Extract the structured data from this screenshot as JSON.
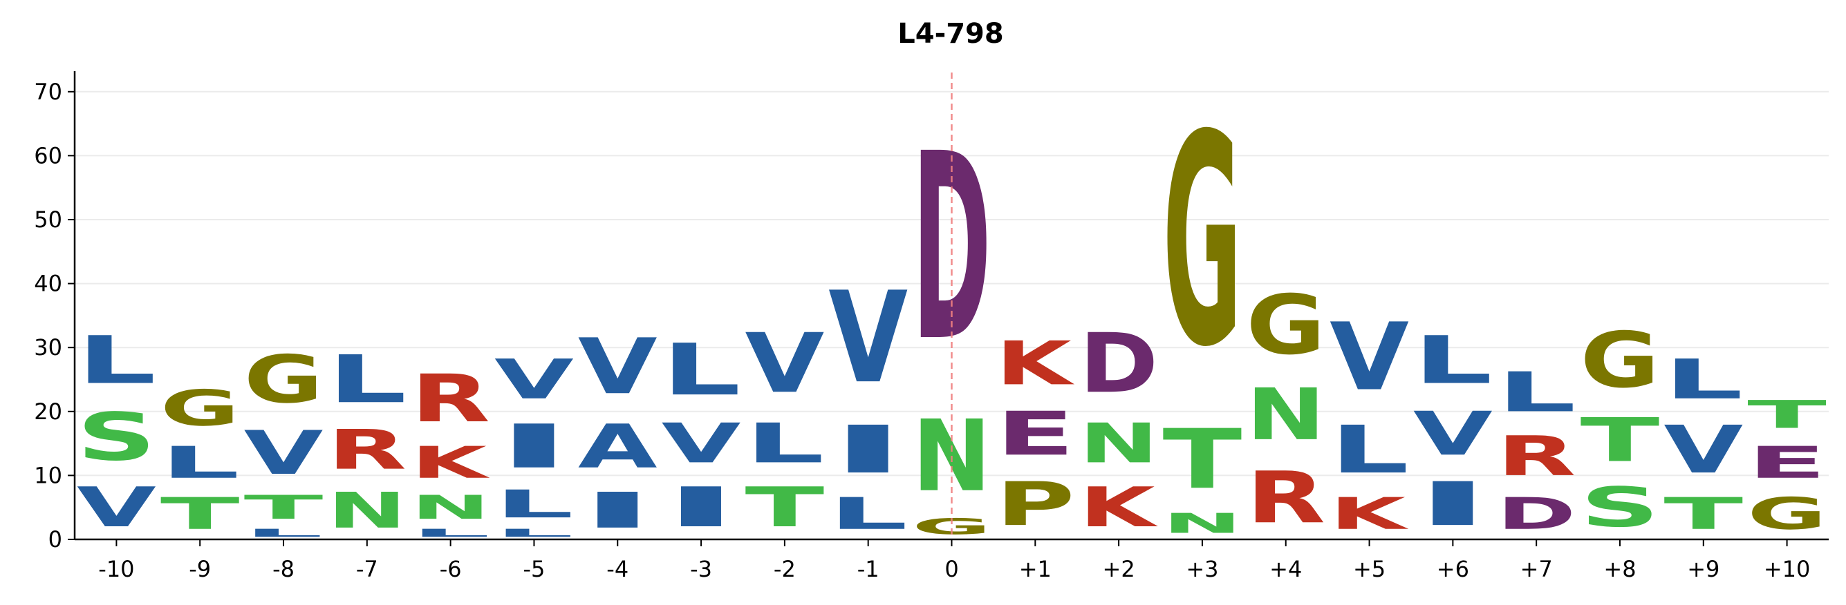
{
  "chart_data": {
    "type": "logo",
    "title": "L4-798",
    "xlabel": "",
    "ylabel": "",
    "ylim": [
      0,
      73
    ],
    "yticks": [
      0,
      10,
      20,
      30,
      40,
      50,
      60,
      70
    ],
    "grid": "horizontal",
    "positions": [
      "-10",
      "-9",
      "-8",
      "-7",
      "-6",
      "-5",
      "-4",
      "-3",
      "-2",
      "-1",
      "0",
      "+1",
      "+2",
      "+3",
      "+4",
      "+5",
      "+6",
      "+7",
      "+8",
      "+9",
      "+10"
    ],
    "reference_line": {
      "position": "0",
      "style": "dashed",
      "color": "#f08080"
    },
    "colors": {
      "L": "#245d9f",
      "V": "#245d9f",
      "I": "#245d9f",
      "A": "#245d9f",
      "T": "#41b947",
      "S": "#41b947",
      "N": "#41b947",
      "G": "#7b7600",
      "P": "#7b7600",
      "R": "#c1311f",
      "K": "#c1311f",
      "D": "#6b2a6d",
      "E": "#6b2a6d"
    },
    "stacks": [
      [
        {
          "letter": "V",
          "height": 10
        },
        {
          "letter": "S",
          "height": 12
        },
        {
          "letter": "L",
          "height": 12
        }
      ],
      [
        {
          "letter": "T",
          "height": 8
        },
        {
          "letter": "L",
          "height": 8
        },
        {
          "letter": "G",
          "height": 9
        }
      ],
      [
        {
          "letter": "L",
          "height": 2
        },
        {
          "letter": "T",
          "height": 6
        },
        {
          "letter": "V",
          "height": 11
        },
        {
          "letter": "G",
          "height": 12
        }
      ],
      [
        {
          "letter": "N",
          "height": 9
        },
        {
          "letter": "R",
          "height": 10
        },
        {
          "letter": "L",
          "height": 12
        }
      ],
      [
        {
          "letter": "L",
          "height": 2
        },
        {
          "letter": "N",
          "height": 6
        },
        {
          "letter": "K",
          "height": 8
        },
        {
          "letter": "R",
          "height": 12
        }
      ],
      [
        {
          "letter": "L",
          "height": 2
        },
        {
          "letter": "L",
          "height": 7
        },
        {
          "letter": "I",
          "height": 11
        },
        {
          "letter": "V",
          "height": 10
        }
      ],
      [
        {
          "letter": "I",
          "height": 9
        },
        {
          "letter": "A",
          "height": 11
        },
        {
          "letter": "V",
          "height": 14
        }
      ],
      [
        {
          "letter": "I",
          "height": 10
        },
        {
          "letter": "V",
          "height": 10
        },
        {
          "letter": "L",
          "height": 13
        }
      ],
      [
        {
          "letter": "T",
          "height": 10
        },
        {
          "letter": "L",
          "height": 10
        },
        {
          "letter": "V",
          "height": 15
        }
      ],
      [
        {
          "letter": "L",
          "height": 8
        },
        {
          "letter": "I",
          "height": 12
        },
        {
          "letter": "V",
          "height": 23
        }
      ],
      [
        {
          "letter": "G",
          "height": 4
        },
        {
          "letter": "N",
          "height": 18
        },
        {
          "letter": "D",
          "height": 47
        }
      ],
      [
        {
          "letter": "P",
          "height": 11
        },
        {
          "letter": "E",
          "height": 11
        },
        {
          "letter": "K",
          "height": 11
        }
      ],
      [
        {
          "letter": "K",
          "height": 10
        },
        {
          "letter": "N",
          "height": 10
        },
        {
          "letter": "D",
          "height": 15
        }
      ],
      [
        {
          "letter": "N",
          "height": 5
        },
        {
          "letter": "T",
          "height": 15
        },
        {
          "letter": "G",
          "height": 53
        }
      ],
      [
        {
          "letter": "R",
          "height": 13
        },
        {
          "letter": "N",
          "height": 13
        },
        {
          "letter": "G",
          "height": 15
        }
      ],
      [
        {
          "letter": "K",
          "height": 8
        },
        {
          "letter": "L",
          "height": 12
        },
        {
          "letter": "V",
          "height": 17
        }
      ],
      [
        {
          "letter": "I",
          "height": 11
        },
        {
          "letter": "V",
          "height": 11
        },
        {
          "letter": "L",
          "height": 12
        }
      ],
      [
        {
          "letter": "D",
          "height": 8
        },
        {
          "letter": "R",
          "height": 10
        },
        {
          "letter": "L",
          "height": 10
        }
      ],
      [
        {
          "letter": "S",
          "height": 10
        },
        {
          "letter": "T",
          "height": 11
        },
        {
          "letter": "G",
          "height": 14
        }
      ],
      [
        {
          "letter": "T",
          "height": 8
        },
        {
          "letter": "V",
          "height": 12
        },
        {
          "letter": "L",
          "height": 10
        }
      ],
      [
        {
          "letter": "G",
          "height": 8
        },
        {
          "letter": "E",
          "height": 8
        },
        {
          "letter": "T",
          "height": 7
        }
      ]
    ]
  }
}
